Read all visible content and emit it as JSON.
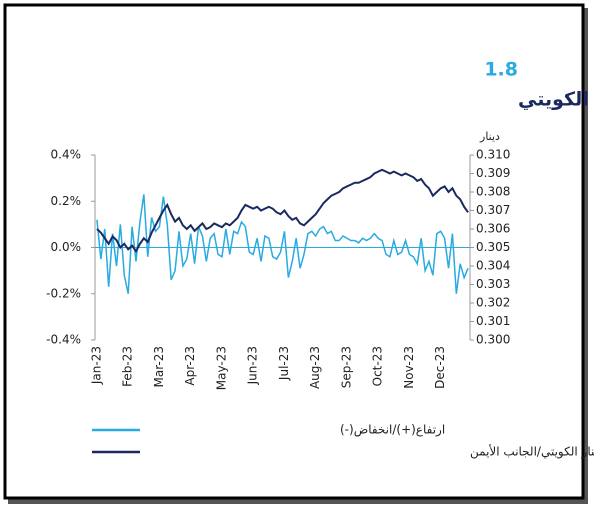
{
  "chart_data": {
    "type": "line",
    "number": "1.8",
    "title": "سعر صرف الدولار الأمريكي مقابل الدينار الكويتي",
    "y2_label": "دينار",
    "categories": [
      "Jan-23",
      null,
      null,
      null,
      null,
      null,
      null,
      null,
      "Feb-23",
      null,
      null,
      null,
      null,
      null,
      null,
      null,
      "Mar-23",
      null,
      null,
      null,
      null,
      null,
      null,
      null,
      "Apr-23",
      null,
      null,
      null,
      null,
      null,
      null,
      null,
      "May-23",
      null,
      null,
      null,
      null,
      null,
      null,
      null,
      "Jun-23",
      null,
      null,
      null,
      null,
      null,
      null,
      null,
      "Jul-23",
      null,
      null,
      null,
      null,
      null,
      null,
      null,
      "Aug-23",
      null,
      null,
      null,
      null,
      null,
      null,
      null,
      "Sep-23",
      null,
      null,
      null,
      null,
      null,
      null,
      null,
      "Oct-23",
      null,
      null,
      null,
      null,
      null,
      null,
      null,
      "Nov-23",
      null,
      null,
      null,
      null,
      null,
      null,
      null,
      "Dec-23",
      null,
      null,
      null,
      null,
      null,
      null,
      null
    ],
    "series": [
      {
        "name": "ارتفاع(+)/انخفاض(-)",
        "color": "#29aae1",
        "axis": "y",
        "values": [
          0.12,
          -0.05,
          0.08,
          -0.17,
          0.06,
          -0.08,
          0.1,
          -0.12,
          -0.2,
          0.09,
          -0.06,
          0.11,
          0.23,
          -0.04,
          0.13,
          0.07,
          0.09,
          0.22,
          0.1,
          -0.14,
          -0.1,
          0.07,
          -0.08,
          -0.05,
          0.06,
          -0.07,
          0.09,
          0.05,
          -0.06,
          0.04,
          0.06,
          -0.03,
          -0.04,
          0.08,
          -0.03,
          0.07,
          0.06,
          0.11,
          0.09,
          -0.02,
          -0.03,
          0.04,
          -0.06,
          0.05,
          0.04,
          -0.04,
          -0.05,
          -0.02,
          0.07,
          -0.13,
          -0.06,
          0.04,
          -0.09,
          -0.03,
          0.06,
          0.07,
          0.05,
          0.08,
          0.09,
          0.06,
          0.07,
          0.03,
          0.03,
          0.05,
          0.04,
          0.03,
          0.03,
          0.02,
          0.04,
          0.03,
          0.04,
          0.06,
          0.04,
          0.03,
          -0.03,
          -0.04,
          0.03,
          -0.03,
          -0.02,
          0.03,
          -0.03,
          -0.04,
          -0.07,
          0.04,
          -0.1,
          -0.06,
          -0.12,
          0.06,
          0.07,
          0.04,
          -0.09,
          0.06,
          -0.2,
          -0.07,
          -0.13,
          -0.09
        ]
      },
      {
        "name": "الدولار الأمريكي مقابل الدينار الكويتي/الجانب الأيمن",
        "color": "#1b2a5e",
        "axis": "y2",
        "values": [
          0.306,
          0.3058,
          0.3055,
          0.3052,
          0.3056,
          0.3054,
          0.305,
          0.3052,
          0.3049,
          0.3051,
          0.3048,
          0.3052,
          0.3055,
          0.3053,
          0.3058,
          0.3062,
          0.3066,
          0.307,
          0.3073,
          0.3068,
          0.3064,
          0.3066,
          0.3062,
          0.306,
          0.3062,
          0.3059,
          0.3061,
          0.3063,
          0.306,
          0.3061,
          0.3063,
          0.3062,
          0.3061,
          0.3063,
          0.3062,
          0.3064,
          0.3066,
          0.307,
          0.3073,
          0.3072,
          0.3071,
          0.3072,
          0.307,
          0.3071,
          0.3072,
          0.3071,
          0.3069,
          0.3068,
          0.307,
          0.3067,
          0.3065,
          0.3066,
          0.3063,
          0.3062,
          0.3064,
          0.3066,
          0.3068,
          0.3071,
          0.3074,
          0.3076,
          0.3078,
          0.3079,
          0.308,
          0.3082,
          0.3083,
          0.3084,
          0.3085,
          0.3085,
          0.3086,
          0.3087,
          0.3088,
          0.309,
          0.3091,
          0.3092,
          0.3091,
          0.309,
          0.3091,
          0.309,
          0.3089,
          0.309,
          0.3089,
          0.3088,
          0.3086,
          0.3087,
          0.3084,
          0.3082,
          0.3078,
          0.308,
          0.3082,
          0.3083,
          0.308,
          0.3082,
          0.3078,
          0.3076,
          0.3072,
          0.3069
        ]
      }
    ],
    "ylim": [
      -0.4,
      0.4
    ],
    "yticks": [
      {
        "value": 0.4,
        "label": "0.4%"
      },
      {
        "value": 0.2,
        "label": "0.2%"
      },
      {
        "value": 0,
        "label": "0.0%"
      },
      {
        "value": -0.2,
        "label": "-0.2%"
      },
      {
        "value": -0.4,
        "label": "-0.4%"
      }
    ],
    "y2lim": [
      0.3,
      0.31
    ],
    "y2ticks": [
      {
        "value": 0.31,
        "label": "0.310"
      },
      {
        "value": 0.309,
        "label": "0.309"
      },
      {
        "value": 0.308,
        "label": "0.308"
      },
      {
        "value": 0.307,
        "label": "0.307"
      },
      {
        "value": 0.306,
        "label": "0.306"
      },
      {
        "value": 0.305,
        "label": "0.305"
      },
      {
        "value": 0.304,
        "label": "0.304"
      },
      {
        "value": 0.303,
        "label": "0.303"
      },
      {
        "value": 0.302,
        "label": "0.302"
      },
      {
        "value": 0.301,
        "label": "0.301"
      },
      {
        "value": 0.3,
        "label": "0.300"
      }
    ]
  }
}
